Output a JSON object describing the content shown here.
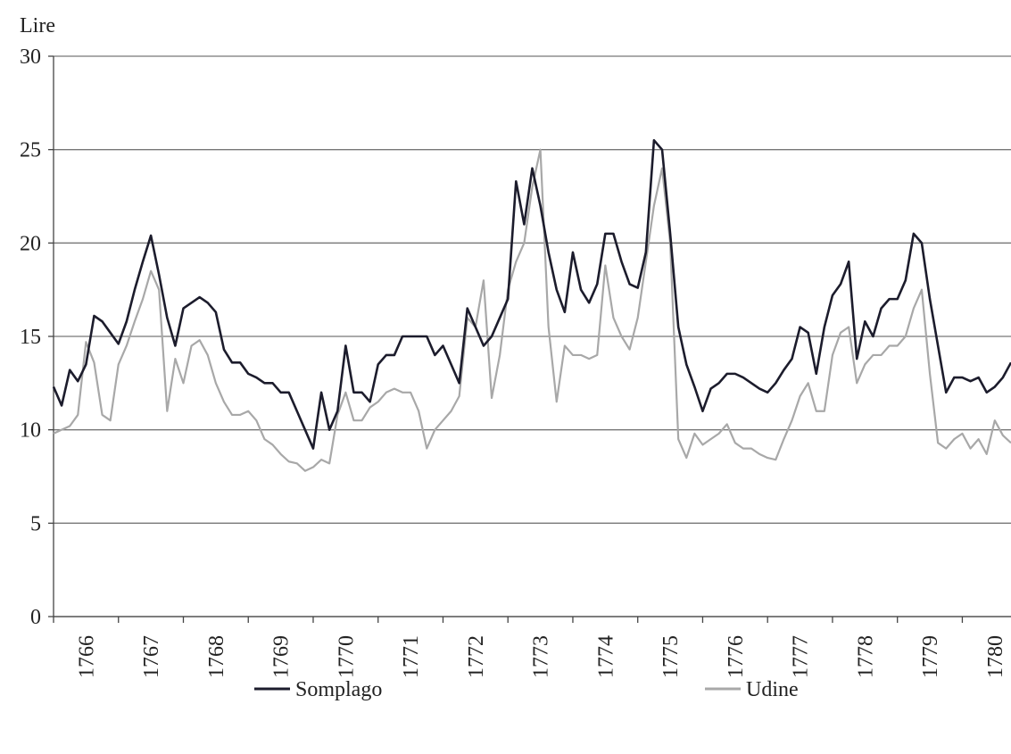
{
  "chart_data": {
    "type": "line",
    "ylabel": "Lire",
    "x": [
      1766,
      1766.125,
      1766.25,
      1766.375,
      1766.5,
      1766.625,
      1766.75,
      1766.875,
      1767,
      1767.125,
      1767.25,
      1767.375,
      1767.5,
      1767.625,
      1767.75,
      1767.875,
      1768,
      1768.125,
      1768.25,
      1768.375,
      1768.5,
      1768.625,
      1768.75,
      1768.875,
      1769,
      1769.125,
      1769.25,
      1769.375,
      1769.5,
      1769.625,
      1769.75,
      1769.875,
      1770,
      1770.125,
      1770.25,
      1770.375,
      1770.5,
      1770.625,
      1770.75,
      1770.875,
      1771,
      1771.125,
      1771.25,
      1771.375,
      1771.5,
      1771.625,
      1771.75,
      1771.875,
      1772,
      1772.125,
      1772.25,
      1772.375,
      1772.5,
      1772.625,
      1772.75,
      1772.875,
      1773,
      1773.125,
      1773.25,
      1773.375,
      1773.5,
      1773.625,
      1773.75,
      1773.875,
      1774,
      1774.125,
      1774.25,
      1774.375,
      1774.5,
      1774.625,
      1774.75,
      1774.875,
      1775,
      1775.125,
      1775.25,
      1775.375,
      1775.5,
      1775.625,
      1775.75,
      1775.875,
      1776,
      1776.125,
      1776.25,
      1776.375,
      1776.5,
      1776.625,
      1776.75,
      1776.875,
      1777,
      1777.125,
      1777.25,
      1777.375,
      1777.5,
      1777.625,
      1777.75,
      1777.875,
      1778,
      1778.125,
      1778.25,
      1778.375,
      1778.5,
      1778.625,
      1778.75,
      1778.875,
      1779,
      1779.125,
      1779.25,
      1779.375,
      1779.5,
      1779.625,
      1779.75,
      1779.875,
      1780,
      1780.125,
      1780.25,
      1780.375,
      1780.5,
      1780.625,
      1780.75
    ],
    "series": [
      {
        "name": "Somplago",
        "color": "#1c1c2c",
        "values": [
          12.3,
          11.3,
          13.2,
          12.6,
          13.5,
          16.1,
          15.8,
          15.2,
          14.6,
          15.8,
          17.5,
          19.0,
          20.4,
          18.3,
          16.0,
          14.5,
          16.5,
          16.8,
          17.1,
          16.8,
          16.3,
          14.3,
          13.6,
          13.6,
          13.0,
          12.8,
          12.5,
          12.5,
          12.0,
          12.0,
          11.0,
          10.0,
          9.0,
          12.0,
          10.0,
          11.0,
          14.5,
          12.0,
          12.0,
          11.5,
          13.5,
          14.0,
          14.0,
          15.0,
          15.0,
          15.0,
          15.0,
          14.0,
          14.5,
          13.5,
          12.5,
          16.5,
          15.5,
          14.5,
          15.0,
          16.0,
          17.0,
          23.3,
          21.0,
          24.0,
          22.0,
          19.5,
          17.5,
          16.3,
          19.5,
          17.5,
          16.8,
          17.8,
          20.5,
          20.5,
          19.0,
          17.8,
          17.6,
          19.5,
          25.5,
          25.0,
          20.5,
          15.5,
          13.5,
          12.3,
          11.0,
          12.2,
          12.5,
          13.0,
          13.0,
          12.8,
          12.5,
          12.2,
          12.0,
          12.5,
          13.2,
          13.8,
          15.5,
          15.2,
          13.0,
          15.5,
          17.2,
          17.8,
          19.0,
          13.8,
          15.8,
          15.0,
          16.5,
          17.0,
          17.0,
          18.0,
          20.5,
          20.0,
          17.0,
          14.5,
          12.0,
          12.8,
          12.8,
          12.6,
          12.8,
          12.0,
          12.3,
          12.8,
          13.6
        ]
      },
      {
        "name": "Udine",
        "color": "#a8a8a8",
        "values": [
          9.8,
          10.0,
          10.2,
          10.8,
          14.7,
          13.6,
          10.8,
          10.5,
          13.5,
          14.5,
          15.8,
          17.0,
          18.5,
          17.5,
          11.0,
          13.8,
          12.5,
          14.5,
          14.8,
          14.0,
          12.5,
          11.5,
          10.8,
          10.8,
          11.0,
          10.5,
          9.5,
          9.2,
          8.7,
          8.3,
          8.2,
          7.8,
          8.0,
          8.4,
          8.2,
          10.8,
          12.0,
          10.5,
          10.5,
          11.2,
          11.5,
          12.0,
          12.2,
          12.0,
          12.0,
          11.0,
          9.0,
          10.0,
          10.5,
          11.0,
          11.8,
          16.0,
          15.5,
          18.0,
          11.7,
          14.0,
          17.5,
          19.0,
          20.0,
          23.0,
          25.0,
          15.5,
          11.5,
          14.5,
          14.0,
          14.0,
          13.8,
          14.0,
          18.8,
          16.0,
          15.0,
          14.3,
          16.0,
          19.0,
          22.0,
          24.0,
          20.0,
          9.5,
          8.5,
          9.8,
          9.2,
          9.5,
          9.8,
          10.3,
          9.3,
          9.0,
          9.0,
          8.7,
          8.5,
          8.4,
          9.5,
          10.5,
          11.8,
          12.5,
          11.0,
          11.0,
          14.0,
          15.2,
          15.5,
          12.5,
          13.5,
          14.0,
          14.0,
          14.5,
          14.5,
          15.0,
          16.5,
          17.5,
          13.0,
          9.3,
          9.0,
          9.5,
          9.8,
          9.0,
          9.5,
          8.7,
          10.5,
          9.7,
          9.3
        ]
      }
    ],
    "xlim": [
      1766,
      1780.75
    ],
    "xticks": [
      1766,
      1767,
      1768,
      1769,
      1770,
      1771,
      1772,
      1773,
      1774,
      1775,
      1776,
      1777,
      1778,
      1779,
      1780
    ],
    "ylim": [
      0,
      30
    ],
    "yticks": [
      0,
      5,
      10,
      15,
      20,
      25,
      30
    ],
    "grid": true,
    "legend": "bottom"
  }
}
